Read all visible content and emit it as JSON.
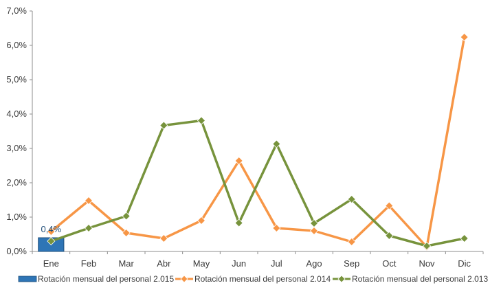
{
  "chart_data": {
    "type": "line",
    "title": "",
    "xlabel": "",
    "ylabel": "",
    "categories": [
      "Ene",
      "Feb",
      "Mar",
      "Abr",
      "May",
      "Jun",
      "Jul",
      "Ago",
      "Sep",
      "Oct",
      "Nov",
      "Dic"
    ],
    "ylim": [
      0,
      7
    ],
    "yticks": [
      0,
      1,
      2,
      3,
      4,
      5,
      6,
      7
    ],
    "ytick_labels": [
      "0,0%",
      "1,0%",
      "2,0%",
      "3,0%",
      "4,0%",
      "5,0%",
      "6,0%",
      "7,0%"
    ],
    "grid": false,
    "legend_position": "bottom",
    "series": [
      {
        "name": "Rotación mensual del personal 2.015",
        "kind": "bar",
        "color": "#2e75b6",
        "values": [
          0.4,
          null,
          null,
          null,
          null,
          null,
          null,
          null,
          null,
          null,
          null,
          null
        ],
        "data_labels": [
          "0,4%",
          null,
          null,
          null,
          null,
          null,
          null,
          null,
          null,
          null,
          null,
          null
        ]
      },
      {
        "name": "Rotación mensual del personal 2.014",
        "kind": "line",
        "marker": "diamond",
        "color": "#f79646",
        "values": [
          0.58,
          1.48,
          0.54,
          0.38,
          0.9,
          2.64,
          0.68,
          0.6,
          0.28,
          1.33,
          0.13,
          6.24
        ]
      },
      {
        "name": "Rotación mensual del personal 2.013",
        "kind": "line",
        "marker": "diamond",
        "color": "#77933c",
        "values": [
          0.3,
          0.68,
          1.03,
          3.67,
          3.81,
          0.83,
          3.13,
          0.82,
          1.52,
          0.46,
          0.16,
          0.38
        ]
      }
    ]
  }
}
